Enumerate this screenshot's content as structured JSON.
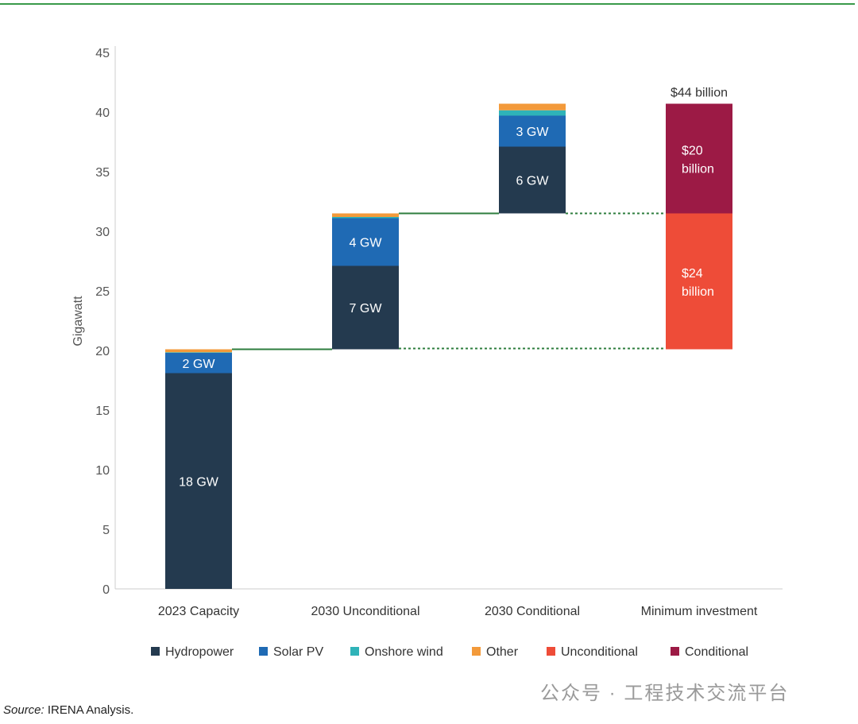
{
  "chart_data": {
    "type": "bar",
    "subtype": "stacked-waterfall",
    "ylabel": "Gigawatt",
    "ylim": [
      0,
      45
    ],
    "yticks": [
      0,
      5,
      10,
      15,
      20,
      25,
      30,
      35,
      40,
      45
    ],
    "categories": [
      "2023 Capacity",
      "2030 Unconditional",
      "2030 Conditional",
      "Minimum investment"
    ],
    "legend": [
      {
        "name": "Hydropower",
        "color": "#243a4f"
      },
      {
        "name": "Solar PV",
        "color": "#1f6ab4"
      },
      {
        "name": "Onshore wind",
        "color": "#2fb3b8"
      },
      {
        "name": "Other",
        "color": "#f39a3a"
      },
      {
        "name": "Unconditional",
        "color": "#ee4c38"
      },
      {
        "name": "Conditional",
        "color": "#9c1a45"
      }
    ],
    "bars": [
      {
        "category": "2023 Capacity",
        "base": 0,
        "segments": [
          {
            "series": "Hydropower",
            "value": 18.1,
            "label": "18 GW"
          },
          {
            "series": "Solar PV",
            "value": 1.7,
            "label": "2 GW"
          },
          {
            "series": "Onshore wind",
            "value": 0.05,
            "label": ""
          },
          {
            "series": "Other",
            "value": 0.25,
            "label": ""
          }
        ]
      },
      {
        "category": "2030 Unconditional",
        "base": 20.1,
        "segments": [
          {
            "series": "Hydropower",
            "value": 7.0,
            "label": "7 GW"
          },
          {
            "series": "Solar PV",
            "value": 4.0,
            "label": "4 GW"
          },
          {
            "series": "Onshore wind",
            "value": 0.1,
            "label": ""
          },
          {
            "series": "Other",
            "value": 0.3,
            "label": ""
          }
        ]
      },
      {
        "category": "2030 Conditional",
        "base": 31.5,
        "segments": [
          {
            "series": "Hydropower",
            "value": 5.6,
            "label": "6 GW"
          },
          {
            "series": "Solar PV",
            "value": 2.6,
            "label": "3 GW"
          },
          {
            "series": "Onshore wind",
            "value": 0.45,
            "label": ""
          },
          {
            "series": "Other",
            "value": 0.55,
            "label": ""
          }
        ]
      },
      {
        "category": "Minimum investment",
        "base": 20.1,
        "segments": [
          {
            "series": "Unconditional",
            "value": 11.4,
            "label": "$24|billion"
          },
          {
            "series": "Conditional",
            "value": 9.2,
            "label": "$20|billion"
          }
        ],
        "total_label": "$44 billion"
      }
    ]
  },
  "source_prefix": "Source:",
  "source_text": " IRENA Analysis.",
  "watermark": "公众号 · 工程技术交流平台"
}
